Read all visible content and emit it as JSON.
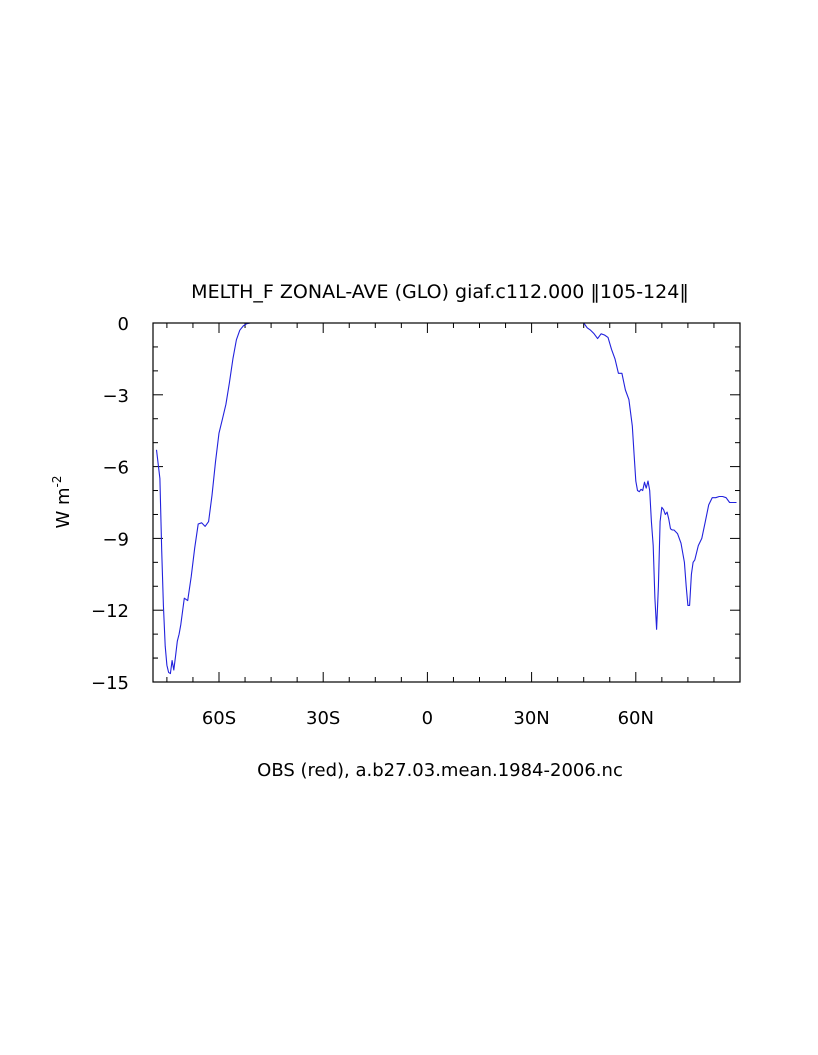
{
  "chart_data": {
    "type": "line",
    "title": "MELTH_F ZONAL-AVE (GLO) giaf.c112.000 ‖105-124‖",
    "xlabel": "OBS (red), a.b27.03.mean.1984-2006.nc",
    "ylabel": "W m",
    "ylabel_exponent": "-2",
    "xlim": [
      -79,
      90
    ],
    "ylim": [
      -15,
      0
    ],
    "x_ticks": [
      {
        "value": -60,
        "label": "60S"
      },
      {
        "value": -30,
        "label": "30S"
      },
      {
        "value": 0,
        "label": "0"
      },
      {
        "value": 30,
        "label": "30N"
      },
      {
        "value": 60,
        "label": "60N"
      }
    ],
    "y_ticks": [
      {
        "value": 0,
        "label": "0"
      },
      {
        "value": -3,
        "label": "−3"
      },
      {
        "value": -6,
        "label": "−6"
      },
      {
        "value": -9,
        "label": "−9"
      },
      {
        "value": -12,
        "label": "−12"
      },
      {
        "value": -15,
        "label": "−15"
      }
    ],
    "grid": false,
    "series": [
      {
        "color": "#2222dd",
        "segments": [
          {
            "x": [
              -78,
              -77,
              -76.5,
              -76,
              -75.5,
              -75,
              -74.5,
              -74,
              -73.5,
              -73,
              -72.5,
              -72,
              -71.5,
              -71,
              -70,
              -69,
              -68,
              -67,
              -66,
              -65,
              -64,
              -63,
              -62,
              -61,
              -60,
              -59,
              -58,
              -57,
              -56,
              -55,
              -54,
              -53,
              -52,
              -51,
              -50
            ],
            "y": [
              -5.3,
              -6.5,
              -9.5,
              -11.8,
              -13.5,
              -14.3,
              -14.6,
              -14.65,
              -14.1,
              -14.5,
              -13.9,
              -13.3,
              -13.0,
              -12.6,
              -11.5,
              -11.6,
              -10.6,
              -9.4,
              -8.4,
              -8.35,
              -8.5,
              -8.3,
              -7.2,
              -5.8,
              -4.6,
              -4.0,
              -3.4,
              -2.5,
              -1.5,
              -0.7,
              -0.3,
              -0.12,
              -0.03,
              0,
              0
            ]
          },
          {
            "x": [
              45,
              46,
              47,
              48,
              49,
              50,
              51,
              52,
              53,
              54,
              55,
              56,
              57,
              58,
              59,
              59.5,
              60,
              60.5,
              61,
              61.5,
              62,
              62.5,
              63,
              63.5,
              64,
              64.5,
              65,
              65.5,
              66,
              66.5,
              67,
              67.5,
              68,
              68.5,
              69,
              69.5,
              70,
              70.5,
              71,
              72,
              73,
              74,
              74.5,
              75,
              75.5,
              76,
              76.5,
              77,
              78,
              79,
              80,
              81,
              82,
              83,
              84,
              85,
              86,
              87,
              88,
              89
            ],
            "y": [
              0,
              -0.2,
              -0.3,
              -0.45,
              -0.65,
              -0.45,
              -0.5,
              -0.6,
              -1.1,
              -1.5,
              -2.1,
              -2.1,
              -2.8,
              -3.2,
              -4.3,
              -5.5,
              -6.6,
              -7.0,
              -7.05,
              -6.95,
              -7.0,
              -6.65,
              -6.9,
              -6.6,
              -7.0,
              -8.3,
              -9.3,
              -11.5,
              -12.8,
              -11.0,
              -8.3,
              -7.7,
              -7.8,
              -8.0,
              -7.9,
              -8.2,
              -8.6,
              -8.65,
              -8.65,
              -8.8,
              -9.2,
              -10.0,
              -11.0,
              -11.8,
              -11.8,
              -10.5,
              -10.0,
              -9.9,
              -9.3,
              -9.0,
              -8.3,
              -7.6,
              -7.3,
              -7.3,
              -7.25,
              -7.25,
              -7.3,
              -7.5,
              -7.5,
              -7.5
            ]
          }
        ]
      }
    ]
  }
}
